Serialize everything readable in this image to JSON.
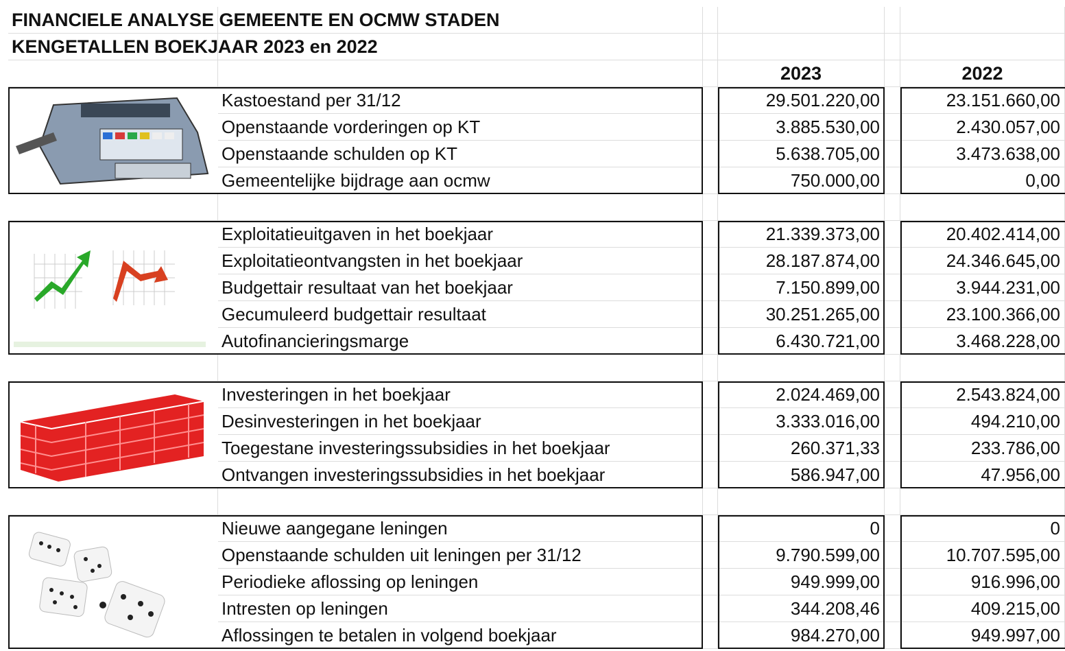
{
  "header": {
    "title_line1": "FINANCIELE ANALYSE GEMEENTE EN OCMW STADEN",
    "title_line2": "KENGETALLEN BOEKJAAR 2023 en 2022",
    "col_2023": "2023",
    "col_2022": "2022"
  },
  "sections": [
    {
      "rows": [
        {
          "label": "Kastoestand per 31/12",
          "v2023": "29.501.220,00",
          "v2022": "23.151.660,00"
        },
        {
          "label": "Openstaande vorderingen op KT",
          "v2023": "3.885.530,00",
          "v2022": "2.430.057,00"
        },
        {
          "label": "Openstaande schulden op KT",
          "v2023": "5.638.705,00",
          "v2022": "3.473.638,00"
        },
        {
          "label": "Gemeentelijke bijdrage aan ocmw",
          "v2023": "750.000,00",
          "v2022": "0,00"
        }
      ]
    },
    {
      "rows": [
        {
          "label": "Exploitatieuitgaven in het boekjaar",
          "v2023": "21.339.373,00",
          "v2022": "20.402.414,00"
        },
        {
          "label": "Exploitatieontvangsten in het boekjaar",
          "v2023": "28.187.874,00",
          "v2022": "24.346.645,00"
        },
        {
          "label": "Budgettair resultaat van het boekjaar",
          "v2023": "7.150.899,00",
          "v2022": "3.944.231,00"
        },
        {
          "label": "Gecumuleerd budgettair resultaat",
          "v2023": "30.251.265,00",
          "v2022": "23.100.366,00"
        },
        {
          "label": "Autofinancieringsmarge",
          "v2023": "6.430.721,00",
          "v2022": "3.468.228,00"
        }
      ]
    },
    {
      "rows": [
        {
          "label": "Investeringen in het boekjaar",
          "v2023": "2.024.469,00",
          "v2022": "2.543.824,00"
        },
        {
          "label": "Desinvesteringen in het boekjaar",
          "v2023": "3.333.016,00",
          "v2022": "494.210,00"
        },
        {
          "label": "Toegestane investeringssubsidies in het boekjaar",
          "v2023": "260.371,33",
          "v2022": "233.786,00"
        },
        {
          "label": "Ontvangen investeringssubsidies in het boekjaar",
          "v2023": "586.947,00",
          "v2022": "47.956,00"
        }
      ]
    },
    {
      "rows": [
        {
          "label": "Nieuwe aangegane leningen",
          "v2023": "0",
          "v2022": "0"
        },
        {
          "label": "Openstaande schulden uit leningen per 31/12",
          "v2023": "9.790.599,00",
          "v2022": "10.707.595,00"
        },
        {
          "label": "Periodieke aflossing op leningen",
          "v2023": "949.999,00",
          "v2022": "916.996,00"
        },
        {
          "label": "Intresten op leningen",
          "v2023": "344.208,46",
          "v2022": "409.215,00"
        },
        {
          "label": "Aflossingen te betalen in volgend boekjaar",
          "v2023": "984.270,00",
          "v2022": "949.997,00"
        }
      ]
    }
  ]
}
